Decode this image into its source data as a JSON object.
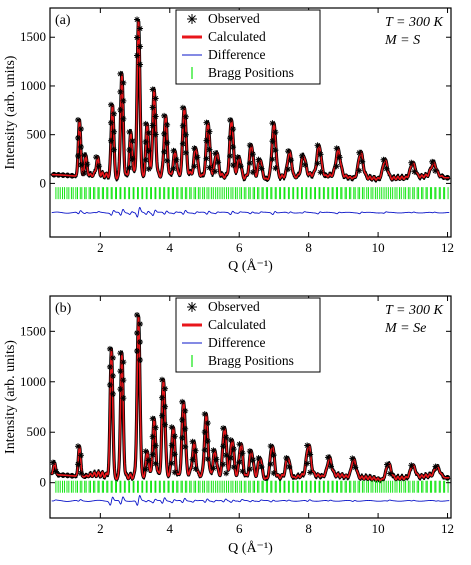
{
  "chart_data": [
    {
      "type": "line",
      "panel_label": "(a)",
      "annotation_T": "T = 300 K",
      "annotation_M": "M = S",
      "xlabel": "Q (Å⁻¹)",
      "ylabel": "Intensity (arb. units)",
      "xlim": [
        0.55,
        12.1
      ],
      "ylim": [
        -550,
        1800
      ],
      "xticks": [
        2,
        4,
        6,
        8,
        10,
        12
      ],
      "yticks": [
        0,
        500,
        1000,
        1500
      ],
      "legend_position": "top-center",
      "legend": [
        "Observed",
        "Calculated",
        "Difference",
        "Bragg Positions"
      ],
      "colors": {
        "observed": "#000000",
        "calculated": "#e8161b",
        "difference": "#0a14c8",
        "bragg": "#12e612"
      },
      "baseline": 40,
      "difference_offset": -300,
      "bragg_row_y": -100,
      "peaks": [
        {
          "q": 1.4,
          "y": 620
        },
        {
          "q": 1.58,
          "y": 250
        },
        {
          "q": 1.92,
          "y": 210
        },
        {
          "q": 2.35,
          "y": 800
        },
        {
          "q": 2.62,
          "y": 1090
        },
        {
          "q": 2.88,
          "y": 480
        },
        {
          "q": 3.1,
          "y": 1640
        },
        {
          "q": 3.35,
          "y": 600
        },
        {
          "q": 3.55,
          "y": 910
        },
        {
          "q": 3.88,
          "y": 640
        },
        {
          "q": 4.15,
          "y": 300
        },
        {
          "q": 4.42,
          "y": 740
        },
        {
          "q": 4.75,
          "y": 320
        },
        {
          "q": 5.1,
          "y": 600
        },
        {
          "q": 5.35,
          "y": 280
        },
        {
          "q": 5.78,
          "y": 640
        },
        {
          "q": 6.0,
          "y": 260
        },
        {
          "q": 6.35,
          "y": 380
        },
        {
          "q": 6.6,
          "y": 250
        },
        {
          "q": 7.0,
          "y": 580
        },
        {
          "q": 7.45,
          "y": 300
        },
        {
          "q": 7.85,
          "y": 250
        },
        {
          "q": 8.3,
          "y": 350
        },
        {
          "q": 8.85,
          "y": 300
        },
        {
          "q": 9.5,
          "y": 300
        },
        {
          "q": 10.2,
          "y": 240
        },
        {
          "q": 11.0,
          "y": 200
        },
        {
          "q": 11.6,
          "y": 170
        }
      ]
    },
    {
      "type": "line",
      "panel_label": "(b)",
      "annotation_T": "T = 300 K",
      "annotation_M": "M = Se",
      "xlabel": "Q (Å⁻¹)",
      "ylabel": "Intensity (arb. units)",
      "xlim": [
        0.55,
        12.1
      ],
      "ylim": [
        -350,
        1850
      ],
      "xticks": [
        2,
        4,
        6,
        8,
        10,
        12
      ],
      "yticks": [
        0,
        500,
        1000,
        1500
      ],
      "legend_position": "top-center",
      "legend": [
        "Observed",
        "Calculated",
        "Difference",
        "Bragg Positions"
      ],
      "colors": {
        "observed": "#000000",
        "calculated": "#e8161b",
        "difference": "#0a14c8",
        "bragg": "#12e612"
      },
      "baseline": 30,
      "difference_offset": -180,
      "bragg_row_y": -40,
      "peaks": [
        {
          "q": 0.68,
          "y": 150
        },
        {
          "q": 1.4,
          "y": 330
        },
        {
          "q": 2.32,
          "y": 1300
        },
        {
          "q": 2.62,
          "y": 1250
        },
        {
          "q": 3.1,
          "y": 1620
        },
        {
          "q": 3.35,
          "y": 300
        },
        {
          "q": 3.55,
          "y": 580
        },
        {
          "q": 3.82,
          "y": 980
        },
        {
          "q": 4.1,
          "y": 520
        },
        {
          "q": 4.4,
          "y": 760
        },
        {
          "q": 4.7,
          "y": 330
        },
        {
          "q": 5.05,
          "y": 640
        },
        {
          "q": 5.3,
          "y": 270
        },
        {
          "q": 5.58,
          "y": 520
        },
        {
          "q": 5.8,
          "y": 420
        },
        {
          "q": 6.05,
          "y": 370
        },
        {
          "q": 6.35,
          "y": 300
        },
        {
          "q": 6.6,
          "y": 250
        },
        {
          "q": 6.95,
          "y": 360
        },
        {
          "q": 7.4,
          "y": 230
        },
        {
          "q": 8.0,
          "y": 330
        },
        {
          "q": 8.6,
          "y": 200
        },
        {
          "q": 9.3,
          "y": 220
        },
        {
          "q": 10.3,
          "y": 180
        },
        {
          "q": 11.0,
          "y": 160
        },
        {
          "q": 11.7,
          "y": 120
        }
      ]
    }
  ]
}
